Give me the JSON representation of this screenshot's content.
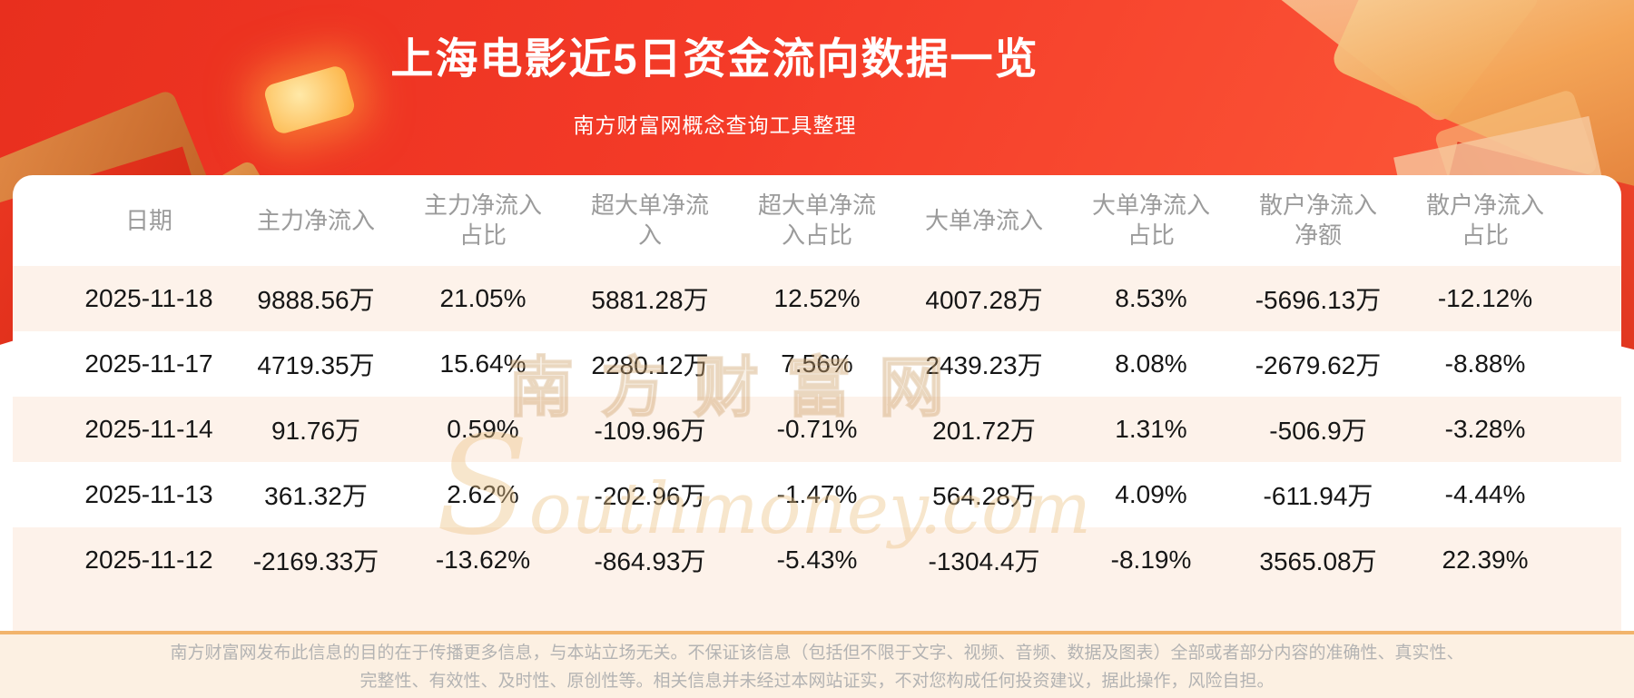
{
  "banner": {
    "title": "上海电影近5日资金流向数据一览",
    "subtitle": "南方财富网概念查询工具整理"
  },
  "table": {
    "headers": [
      "日期",
      "主力净流入",
      "主力净流入\n占比",
      "超大单净流\n入",
      "超大单净流\n入占比",
      "大单净流入",
      "大单净流入\n占比",
      "散户净流入\n净额",
      "散户净流入\n占比"
    ]
  },
  "chart_data": {
    "type": "table",
    "title": "上海电影近5日资金流向数据一览",
    "columns": [
      "日期",
      "主力净流入",
      "主力净流入占比",
      "超大单净流入",
      "超大单净流入占比",
      "大单净流入",
      "大单净流入占比",
      "散户净流入净额",
      "散户净流入占比"
    ],
    "rows": [
      [
        "2025-11-18",
        "9888.56万",
        "21.05%",
        "5881.28万",
        "12.52%",
        "4007.28万",
        "8.53%",
        "-5696.13万",
        "-12.12%"
      ],
      [
        "2025-11-17",
        "4719.35万",
        "15.64%",
        "2280.12万",
        "7.56%",
        "2439.23万",
        "8.08%",
        "-2679.62万",
        "-8.88%"
      ],
      [
        "2025-11-14",
        "91.76万",
        "0.59%",
        "-109.96万",
        "-0.71%",
        "201.72万",
        "1.31%",
        "-506.9万",
        "-3.28%"
      ],
      [
        "2025-11-13",
        "361.32万",
        "2.62%",
        "-202.96万",
        "-1.47%",
        "564.28万",
        "4.09%",
        "-611.94万",
        "-4.44%"
      ],
      [
        "2025-11-12",
        "-2169.33万",
        "-13.62%",
        "-864.93万",
        "-5.43%",
        "-1304.4万",
        "-8.19%",
        "3565.08万",
        "22.39%"
      ]
    ]
  },
  "watermark": {
    "cn": "南方财富网",
    "en": "Southmoney.com"
  },
  "footer": {
    "line1": "南方财富网发布此信息的目的在于传播更多信息，与本站立场无关。不保证该信息（包括但不限于文字、视频、音频、数据及图表）全部或者部分内容的准确性、真实性、",
    "line2": "完整性、有效性、及时性、原创性等。相关信息并未经过本网站证实，不对您构成任何投资建议，据此操作，风险自担。"
  },
  "colors": {
    "banner_red": "#f43b28",
    "row_alt": "#fdf2ea",
    "footer_bg": "#fcf0e2",
    "footer_border": "#f2b46c",
    "header_text": "#9b9b9b",
    "data_text": "#161616",
    "watermark_gold": "#eec386"
  }
}
